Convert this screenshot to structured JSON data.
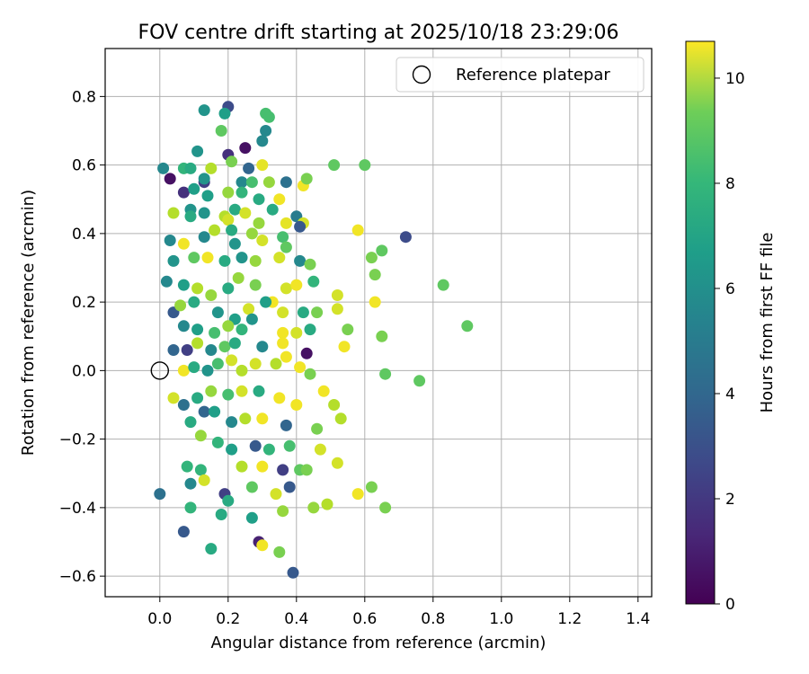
{
  "chart_data": {
    "type": "scatter",
    "title": "FOV centre drift starting at 2025/10/18 23:29:06",
    "xlabel": "Angular distance from reference (arcmin)",
    "ylabel": "Rotation from reference (arcmin)",
    "xlim": [
      -0.16,
      1.44
    ],
    "ylim": [
      -0.66,
      0.94
    ],
    "xticks": [
      0.0,
      0.2,
      0.4,
      0.6,
      0.8,
      1.0,
      1.2,
      1.4
    ],
    "xtick_labels": [
      "0.0",
      "0.2",
      "0.4",
      "0.6",
      "0.8",
      "1.0",
      "1.2",
      "1.4"
    ],
    "yticks": [
      -0.6,
      -0.4,
      -0.2,
      0.0,
      0.2,
      0.4,
      0.6,
      0.8
    ],
    "ytick_labels": [
      "−0.6",
      "−0.4",
      "−0.2",
      "0.0",
      "0.2",
      "0.4",
      "0.6",
      "0.8"
    ],
    "grid": true,
    "colormap": "viridis",
    "colorbar": {
      "label": "Hours from first FF file",
      "range": [
        0,
        10.7
      ],
      "ticks": [
        0,
        2,
        4,
        6,
        8,
        10
      ],
      "tick_labels": [
        "0",
        "2",
        "4",
        "6",
        "8",
        "10"
      ]
    },
    "legend": {
      "position": "top-right",
      "entries": [
        "Reference platepar"
      ]
    },
    "reference_point": {
      "x": 0.0,
      "y": 0.0,
      "label": "Reference platepar"
    },
    "points": [
      [
        0.13,
        0.76,
        5.5
      ],
      [
        0.2,
        0.77,
        2.5
      ],
      [
        0.19,
        0.75,
        6.0
      ],
      [
        0.31,
        0.75,
        7.5
      ],
      [
        0.32,
        0.74,
        7.5
      ],
      [
        0.18,
        0.7,
        8.0
      ],
      [
        0.31,
        0.7,
        5.0
      ],
      [
        0.3,
        0.67,
        5.0
      ],
      [
        0.25,
        0.65,
        0.5
      ],
      [
        0.11,
        0.64,
        5.5
      ],
      [
        0.2,
        0.63,
        1.5
      ],
      [
        0.21,
        0.61,
        8.5
      ],
      [
        0.01,
        0.59,
        5.0
      ],
      [
        0.07,
        0.59,
        7.0
      ],
      [
        0.09,
        0.59,
        6.5
      ],
      [
        0.15,
        0.59,
        9.5
      ],
      [
        0.26,
        0.59,
        3.5
      ],
      [
        0.3,
        0.6,
        10.3
      ],
      [
        0.51,
        0.6,
        8.0
      ],
      [
        0.6,
        0.6,
        8.0
      ],
      [
        0.03,
        0.56,
        0.5
      ],
      [
        0.13,
        0.55,
        2.0
      ],
      [
        0.13,
        0.56,
        5.5
      ],
      [
        0.24,
        0.55,
        5.0
      ],
      [
        0.27,
        0.55,
        7.5
      ],
      [
        0.32,
        0.55,
        9.0
      ],
      [
        0.37,
        0.55,
        4.0
      ],
      [
        0.42,
        0.54,
        10.5
      ],
      [
        0.43,
        0.56,
        8.5
      ],
      [
        0.07,
        0.52,
        1.5
      ],
      [
        0.1,
        0.53,
        6.0
      ],
      [
        0.14,
        0.51,
        6.0
      ],
      [
        0.2,
        0.52,
        9.0
      ],
      [
        0.24,
        0.52,
        7.0
      ],
      [
        0.29,
        0.5,
        6.5
      ],
      [
        0.35,
        0.5,
        10.5
      ],
      [
        0.04,
        0.46,
        9.5
      ],
      [
        0.09,
        0.47,
        5.5
      ],
      [
        0.09,
        0.45,
        6.5
      ],
      [
        0.13,
        0.46,
        5.5
      ],
      [
        0.19,
        0.45,
        9.5
      ],
      [
        0.22,
        0.47,
        6.5
      ],
      [
        0.25,
        0.46,
        10.0
      ],
      [
        0.33,
        0.47,
        6.5
      ],
      [
        0.4,
        0.45,
        4.5
      ],
      [
        0.2,
        0.44,
        10.0
      ],
      [
        0.29,
        0.43,
        9.0
      ],
      [
        0.37,
        0.43,
        10.3
      ],
      [
        0.42,
        0.43,
        10.0
      ],
      [
        0.16,
        0.41,
        9.5
      ],
      [
        0.21,
        0.41,
        6.5
      ],
      [
        0.27,
        0.4,
        9.0
      ],
      [
        0.36,
        0.39,
        7.5
      ],
      [
        0.41,
        0.42,
        3.0
      ],
      [
        0.58,
        0.41,
        10.5
      ],
      [
        0.72,
        0.39,
        2.5
      ],
      [
        0.03,
        0.38,
        5.0
      ],
      [
        0.07,
        0.37,
        10.5
      ],
      [
        0.13,
        0.39,
        5.0
      ],
      [
        0.22,
        0.37,
        5.5
      ],
      [
        0.3,
        0.38,
        10.0
      ],
      [
        0.37,
        0.36,
        8.0
      ],
      [
        0.04,
        0.32,
        5.5
      ],
      [
        0.1,
        0.33,
        8.0
      ],
      [
        0.14,
        0.33,
        10.5
      ],
      [
        0.19,
        0.32,
        6.5
      ],
      [
        0.24,
        0.33,
        5.5
      ],
      [
        0.28,
        0.32,
        9.0
      ],
      [
        0.35,
        0.33,
        10.0
      ],
      [
        0.41,
        0.32,
        5.0
      ],
      [
        0.44,
        0.31,
        8.5
      ],
      [
        0.62,
        0.33,
        8.5
      ],
      [
        0.65,
        0.35,
        8.0
      ],
      [
        0.02,
        0.26,
        5.0
      ],
      [
        0.07,
        0.25,
        6.0
      ],
      [
        0.11,
        0.24,
        9.5
      ],
      [
        0.15,
        0.22,
        9.0
      ],
      [
        0.2,
        0.24,
        6.5
      ],
      [
        0.23,
        0.27,
        9.0
      ],
      [
        0.28,
        0.25,
        8.5
      ],
      [
        0.33,
        0.2,
        10.5
      ],
      [
        0.37,
        0.24,
        10.0
      ],
      [
        0.4,
        0.25,
        10.5
      ],
      [
        0.45,
        0.26,
        7.0
      ],
      [
        0.52,
        0.22,
        10.0
      ],
      [
        0.63,
        0.28,
        8.5
      ],
      [
        0.83,
        0.25,
        8.0
      ],
      [
        0.04,
        0.17,
        3.0
      ],
      [
        0.06,
        0.19,
        9.0
      ],
      [
        0.1,
        0.2,
        6.5
      ],
      [
        0.17,
        0.17,
        5.5
      ],
      [
        0.22,
        0.15,
        6.0
      ],
      [
        0.26,
        0.18,
        10.0
      ],
      [
        0.31,
        0.2,
        6.0
      ],
      [
        0.36,
        0.17,
        10.0
      ],
      [
        0.42,
        0.17,
        6.5
      ],
      [
        0.46,
        0.17,
        8.5
      ],
      [
        0.52,
        0.18,
        10.0
      ],
      [
        0.63,
        0.2,
        10.5
      ],
      [
        0.07,
        0.13,
        5.0
      ],
      [
        0.11,
        0.12,
        6.0
      ],
      [
        0.16,
        0.11,
        7.5
      ],
      [
        0.2,
        0.13,
        9.0
      ],
      [
        0.24,
        0.12,
        7.0
      ],
      [
        0.27,
        0.15,
        5.5
      ],
      [
        0.36,
        0.11,
        10.5
      ],
      [
        0.4,
        0.11,
        10.0
      ],
      [
        0.44,
        0.12,
        6.5
      ],
      [
        0.55,
        0.12,
        8.5
      ],
      [
        0.9,
        0.13,
        8.0
      ],
      [
        0.08,
        0.06,
        2.0
      ],
      [
        0.11,
        0.08,
        9.5
      ],
      [
        0.15,
        0.06,
        5.0
      ],
      [
        0.19,
        0.07,
        8.0
      ],
      [
        0.22,
        0.08,
        6.5
      ],
      [
        0.3,
        0.07,
        5.0
      ],
      [
        0.36,
        0.08,
        10.5
      ],
      [
        0.43,
        0.05,
        0.5
      ],
      [
        0.54,
        0.07,
        10.5
      ],
      [
        0.65,
        0.1,
        8.5
      ],
      [
        0.04,
        0.06,
        3.5
      ],
      [
        0.07,
        0.0,
        10.5
      ],
      [
        0.1,
        0.01,
        6.5
      ],
      [
        0.14,
        0.0,
        5.5
      ],
      [
        0.17,
        0.02,
        7.5
      ],
      [
        0.21,
        0.03,
        10.0
      ],
      [
        0.24,
        0.0,
        9.5
      ],
      [
        0.28,
        0.02,
        10.0
      ],
      [
        0.34,
        0.02,
        9.5
      ],
      [
        0.37,
        0.04,
        10.5
      ],
      [
        0.41,
        0.01,
        10.5
      ],
      [
        0.44,
        -0.01,
        8.5
      ],
      [
        0.66,
        -0.01,
        8.0
      ],
      [
        0.04,
        -0.08,
        10.0
      ],
      [
        0.07,
        -0.1,
        4.0
      ],
      [
        0.11,
        -0.08,
        6.5
      ],
      [
        0.15,
        -0.06,
        9.0
      ],
      [
        0.2,
        -0.07,
        7.5
      ],
      [
        0.24,
        -0.06,
        10.0
      ],
      [
        0.29,
        -0.06,
        6.5
      ],
      [
        0.35,
        -0.08,
        10.5
      ],
      [
        0.4,
        -0.1,
        10.5
      ],
      [
        0.48,
        -0.06,
        10.5
      ],
      [
        0.51,
        -0.1,
        9.5
      ],
      [
        0.76,
        -0.03,
        8.0
      ],
      [
        0.09,
        -0.15,
        6.5
      ],
      [
        0.13,
        -0.12,
        3.5
      ],
      [
        0.16,
        -0.12,
        6.0
      ],
      [
        0.21,
        -0.15,
        5.0
      ],
      [
        0.25,
        -0.14,
        9.5
      ],
      [
        0.3,
        -0.14,
        10.5
      ],
      [
        0.37,
        -0.16,
        3.5
      ],
      [
        0.46,
        -0.17,
        8.5
      ],
      [
        0.53,
        -0.14,
        9.5
      ],
      [
        0.12,
        -0.19,
        9.0
      ],
      [
        0.17,
        -0.21,
        7.0
      ],
      [
        0.21,
        -0.23,
        6.0
      ],
      [
        0.28,
        -0.22,
        3.0
      ],
      [
        0.32,
        -0.23,
        7.0
      ],
      [
        0.38,
        -0.22,
        7.5
      ],
      [
        0.47,
        -0.23,
        10.0
      ],
      [
        0.52,
        -0.27,
        10.0
      ],
      [
        0.08,
        -0.28,
        7.0
      ],
      [
        0.12,
        -0.29,
        7.0
      ],
      [
        0.24,
        -0.28,
        9.5
      ],
      [
        0.3,
        -0.28,
        10.5
      ],
      [
        0.36,
        -0.29,
        2.0
      ],
      [
        0.41,
        -0.29,
        8.0
      ],
      [
        0.43,
        -0.29,
        8.5
      ],
      [
        0.09,
        -0.33,
        5.0
      ],
      [
        0.13,
        -0.32,
        10.0
      ],
      [
        0.27,
        -0.34,
        8.0
      ],
      [
        0.38,
        -0.34,
        3.0
      ],
      [
        0.62,
        -0.34,
        8.5
      ],
      [
        0.0,
        -0.36,
        4.0
      ],
      [
        0.19,
        -0.36,
        2.0
      ],
      [
        0.2,
        -0.38,
        6.5
      ],
      [
        0.34,
        -0.36,
        10.0
      ],
      [
        0.58,
        -0.36,
        10.5
      ],
      [
        0.09,
        -0.4,
        7.0
      ],
      [
        0.18,
        -0.42,
        6.5
      ],
      [
        0.27,
        -0.43,
        6.0
      ],
      [
        0.36,
        -0.41,
        9.0
      ],
      [
        0.45,
        -0.4,
        9.0
      ],
      [
        0.49,
        -0.39,
        9.5
      ],
      [
        0.66,
        -0.4,
        8.5
      ],
      [
        0.07,
        -0.47,
        3.0
      ],
      [
        0.15,
        -0.52,
        6.5
      ],
      [
        0.29,
        -0.5,
        1.0
      ],
      [
        0.3,
        -0.51,
        10.5
      ],
      [
        0.35,
        -0.53,
        8.5
      ],
      [
        0.39,
        -0.59,
        3.0
      ]
    ]
  }
}
